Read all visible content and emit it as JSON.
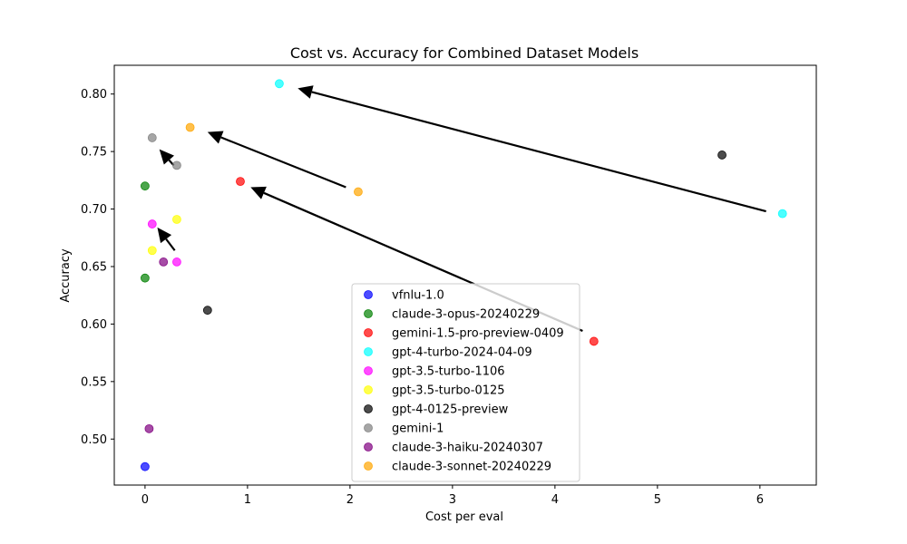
{
  "chart_data": {
    "type": "scatter",
    "title": "Cost vs. Accuracy for Combined Dataset Models",
    "xlabel": "Cost per eval",
    "ylabel": "Accuracy",
    "xlim": [
      -0.3,
      6.55
    ],
    "ylim": [
      0.46,
      0.825
    ],
    "xticks": [
      "0",
      "1",
      "2",
      "3",
      "4",
      "5",
      "6"
    ],
    "xtick_values": [
      0,
      1,
      2,
      3,
      4,
      5,
      6
    ],
    "yticks": [
      "0.50",
      "0.55",
      "0.60",
      "0.65",
      "0.70",
      "0.75",
      "0.80"
    ],
    "ytick_values": [
      0.5,
      0.55,
      0.6,
      0.65,
      0.7,
      0.75,
      0.8
    ],
    "grid": false,
    "legend_position": "bottom-center",
    "series": [
      {
        "name": "vfnlu-1.0",
        "color": "#0000ff",
        "points": [
          [
            0.0,
            0.476
          ]
        ]
      },
      {
        "name": "claude-3-opus-20240229",
        "color": "#008000",
        "points": [
          [
            0.0,
            0.72
          ],
          [
            0.0,
            0.64
          ]
        ]
      },
      {
        "name": "gemini-1.5-pro-preview-0409",
        "color": "#ff0000",
        "points": [
          [
            0.93,
            0.724
          ],
          [
            4.38,
            0.585
          ]
        ]
      },
      {
        "name": "gpt-4-turbo-2024-04-09",
        "color": "#00ffff",
        "points": [
          [
            1.31,
            0.809
          ],
          [
            6.22,
            0.696
          ]
        ]
      },
      {
        "name": "gpt-3.5-turbo-1106",
        "color": "#ff00ff",
        "points": [
          [
            0.07,
            0.687
          ],
          [
            0.31,
            0.654
          ]
        ]
      },
      {
        "name": "gpt-3.5-turbo-0125",
        "color": "#ffff00",
        "points": [
          [
            0.07,
            0.664
          ],
          [
            0.31,
            0.691
          ]
        ]
      },
      {
        "name": "gpt-4-0125-preview",
        "color": "#000000",
        "points": [
          [
            5.63,
            0.747
          ],
          [
            0.61,
            0.612
          ]
        ]
      },
      {
        "name": "gemini-1",
        "color": "#808080",
        "points": [
          [
            0.07,
            0.762
          ],
          [
            0.31,
            0.738
          ]
        ]
      },
      {
        "name": "claude-3-haiku-20240307",
        "color": "#800080",
        "points": [
          [
            0.04,
            0.509
          ],
          [
            0.18,
            0.654
          ]
        ]
      },
      {
        "name": "claude-3-sonnet-20240229",
        "color": "#ffa500",
        "points": [
          [
            0.44,
            0.771
          ],
          [
            2.08,
            0.715
          ]
        ]
      }
    ],
    "arrows": [
      {
        "from": [
          6.06,
          0.698
        ],
        "to": [
          1.49,
          0.805
        ]
      },
      {
        "from": [
          1.96,
          0.719
        ],
        "to": [
          0.61,
          0.767
        ]
      },
      {
        "from": [
          4.27,
          0.594
        ],
        "to": [
          1.03,
          0.719
        ]
      },
      {
        "from": [
          0.28,
          0.738
        ],
        "to": [
          0.14,
          0.752
        ]
      },
      {
        "from": [
          0.29,
          0.664
        ],
        "to": [
          0.12,
          0.684
        ]
      }
    ]
  }
}
